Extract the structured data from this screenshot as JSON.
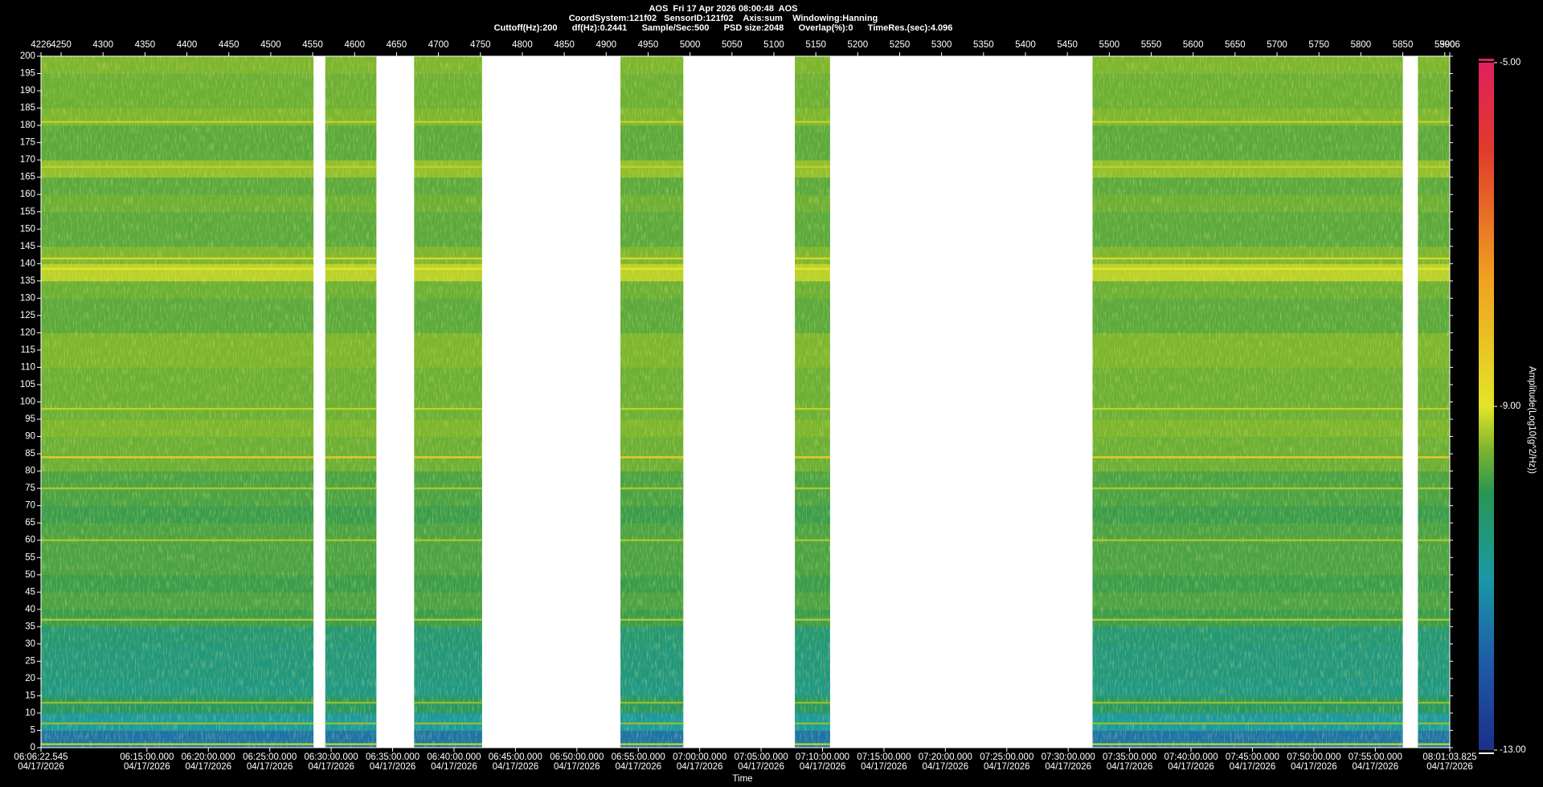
{
  "chart_data": {
    "type": "spectrogram",
    "title": "AOS  Fri 17 Apr 2026 08:00:48  AOS",
    "subtitle": [
      "CoordSystem:121f02   SensorID:121f02    Axis:sum    Windowing:Hanning",
      "Cuttoff(Hz):200      df(Hz):0.2441      Sample/Sec:500      PSD size:2048      Overlap(%):0      TimeRes.(sec):4.096"
    ],
    "xlim": [
      4226,
      5906
    ],
    "xticks": [
      4226,
      4250,
      4300,
      4350,
      4400,
      4450,
      4500,
      4550,
      4600,
      4650,
      4700,
      4750,
      4800,
      4850,
      4900,
      4950,
      5000,
      5050,
      5100,
      5150,
      5200,
      5250,
      5300,
      5350,
      5400,
      5450,
      5500,
      5550,
      5600,
      5650,
      5700,
      5750,
      5800,
      5850,
      5900,
      5906
    ],
    "ylim": [
      0,
      200
    ],
    "yticks": [
      0,
      5,
      10,
      15,
      20,
      25,
      30,
      35,
      40,
      45,
      50,
      55,
      60,
      65,
      70,
      75,
      80,
      85,
      90,
      95,
      100,
      105,
      110,
      115,
      120,
      125,
      130,
      135,
      140,
      145,
      150,
      155,
      160,
      165,
      170,
      175,
      180,
      185,
      190,
      195,
      200
    ],
    "time_axis_label": "Time",
    "time_lim": [
      "06:06:22.545",
      "08:01:03.825"
    ],
    "time_ticks": [
      "06:06:22.545",
      "06:15:00.000",
      "06:20:00.000",
      "06:25:00.000",
      "06:30:00.000",
      "06:35:00.000",
      "06:40:00.000",
      "06:45:00.000",
      "06:50:00.000",
      "06:55:00.000",
      "07:00:00.000",
      "07:05:00.000",
      "07:10:00.000",
      "07:15:00.000",
      "07:20:00.000",
      "07:25:00.000",
      "07:30:00.000",
      "07:35:00.000",
      "07:40:00.000",
      "07:45:00.000",
      "07:50:00.000",
      "07:55:00.000",
      "08:01:03.825"
    ],
    "time_date": "04/17/2026",
    "segments": [
      [
        4226,
        4551
      ],
      [
        4565,
        4626
      ],
      [
        4671,
        4752
      ],
      [
        4917,
        4992
      ],
      [
        5125,
        5167
      ],
      [
        5480,
        5850
      ],
      [
        5868,
        5906
      ]
    ],
    "freq_bins": [
      0,
      5,
      10,
      15,
      20,
      25,
      30,
      35,
      40,
      45,
      50,
      55,
      60,
      65,
      70,
      75,
      80,
      85,
      90,
      95,
      100,
      105,
      110,
      115,
      120,
      125,
      130,
      135,
      140,
      145,
      150,
      155,
      160,
      165,
      170,
      175,
      180,
      185,
      190,
      195,
      200
    ],
    "values": [
      -11.6,
      -10.9,
      -10.2,
      -10.6,
      -10.5,
      -10.5,
      -10.4,
      -9.9,
      -9.8,
      -9.9,
      -9.8,
      -9.8,
      -9.8,
      -9.9,
      -9.8,
      -9.8,
      -9.6,
      -9.6,
      -9.5,
      -9.6,
      -9.6,
      -9.6,
      -9.5,
      -9.5,
      -9.7,
      -9.7,
      -9.6,
      -9.2,
      -9.5,
      -9.7,
      -9.7,
      -9.6,
      -9.7,
      -9.4,
      -9.7,
      -9.7,
      -9.5,
      -9.6,
      -9.6,
      -9.5
    ],
    "lines": {
      "freqs": [
        1,
        7,
        13,
        37,
        60,
        75,
        84,
        98,
        138.5,
        141.5,
        168,
        181
      ],
      "values": [
        -9.2,
        -9.4,
        -9.4,
        -9.3,
        -9.3,
        -9.3,
        -8.4,
        -9.2,
        -9.0,
        -9.1,
        -9.2,
        -9.2
      ]
    },
    "colorbar_label": "Amplitude(Log10(g^2/Hz))",
    "zlim": [
      -13,
      -5
    ],
    "zticks": [
      {
        "value": -5,
        "label": "-5.00"
      },
      {
        "value": -9,
        "label": "-9.00"
      },
      {
        "value": -13,
        "label": "-13.00"
      }
    ],
    "colormap": [
      {
        "value": -13,
        "color": "#1b2f88"
      },
      {
        "value": -12,
        "color": "#1f5aa8"
      },
      {
        "value": -11,
        "color": "#1a98a6"
      },
      {
        "value": -10,
        "color": "#2a9652"
      },
      {
        "value": -9.5,
        "color": "#7cb52e"
      },
      {
        "value": -9,
        "color": "#e4e428"
      },
      {
        "value": -7.5,
        "color": "#f0a020"
      },
      {
        "value": -6,
        "color": "#e03a2c"
      },
      {
        "value": -5,
        "color": "#e0205e"
      }
    ]
  }
}
